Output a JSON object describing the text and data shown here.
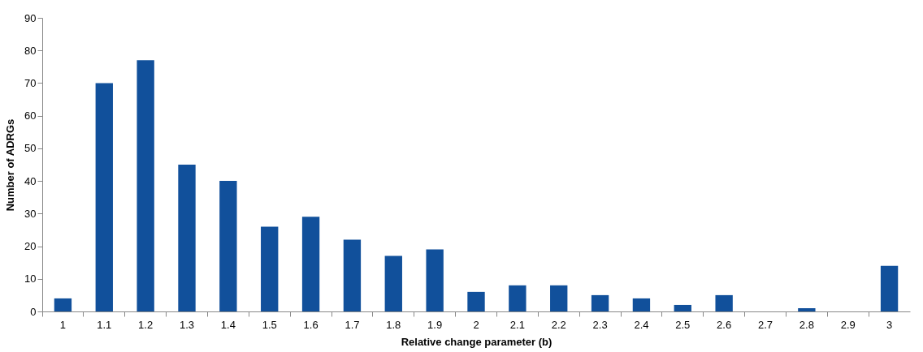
{
  "chart_data": {
    "type": "bar",
    "xlabel": "Relative change parameter (b)",
    "ylabel": "Number of ADRGs",
    "categories": [
      "1",
      "1.1",
      "1.2",
      "1.3",
      "1.4",
      "1.5",
      "1.6",
      "1.7",
      "1.8",
      "1.9",
      "2",
      "2.1",
      "2.2",
      "2.3",
      "2.4",
      "2.5",
      "2.6",
      "2.7",
      "2.8",
      "2.9",
      "3"
    ],
    "values": [
      4,
      70,
      77,
      45,
      40,
      26,
      29,
      22,
      17,
      19,
      6,
      8,
      8,
      5,
      4,
      2,
      5,
      0,
      1,
      0,
      14
    ],
    "color": "#11509b",
    "ylim": [
      0,
      90
    ],
    "yticks": [
      0,
      10,
      20,
      30,
      40,
      50,
      60,
      70,
      80,
      90
    ],
    "grid": false
  }
}
